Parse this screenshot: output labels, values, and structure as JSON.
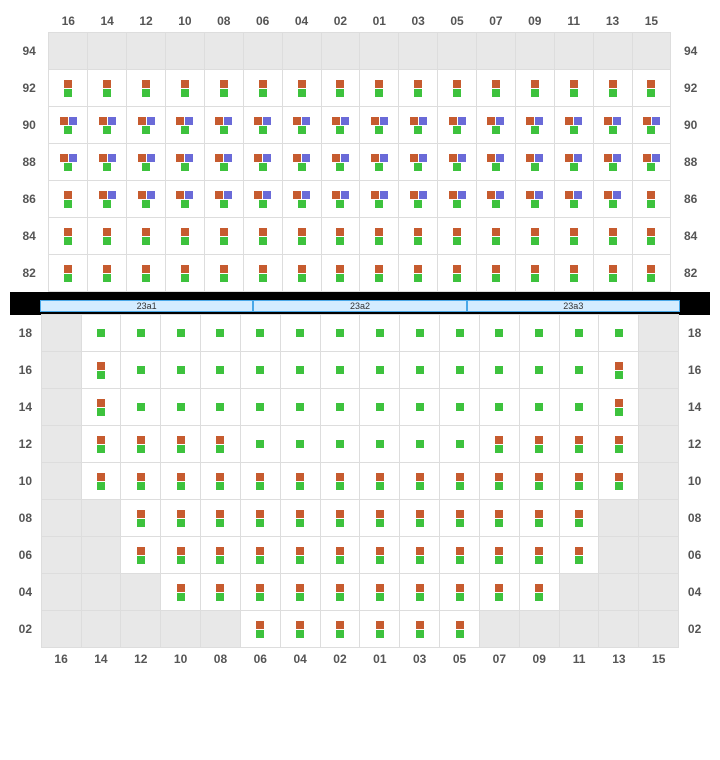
{
  "colors": {
    "orange": "#c65b2f",
    "green": "#3dc23d",
    "purple": "#6a6ad8",
    "cell_bg": "#ffffff",
    "empty_bg": "#e8e8e8",
    "border": "#dddddd",
    "frame": "#000000",
    "label": "#555555",
    "div_bg": "#d4ecff",
    "div_border": "#4aa8e8"
  },
  "columns": [
    "16",
    "14",
    "12",
    "10",
    "08",
    "06",
    "04",
    "02",
    "01",
    "03",
    "05",
    "07",
    "09",
    "11",
    "13",
    "15"
  ],
  "top": {
    "rows": [
      "94",
      "92",
      "90",
      "88",
      "86",
      "84",
      "82"
    ],
    "data": {
      "94": "................",
      "92": "AAAAAAAAAAAAAAAA",
      "90": "BBBBBBBBBBBBBBBB",
      "88": "BBBBBBBBBBBBBBBB",
      "86": "ABBBBBBBBBBBBBBA",
      "84": "AAAAAAAAAAAAAAAA",
      "82": "AAAAAAAAAAAAAAAA"
    }
  },
  "dividers": [
    "23a1",
    "23a2",
    "23a3"
  ],
  "bottom": {
    "rows": [
      "18",
      "16",
      "14",
      "12",
      "10",
      "08",
      "06",
      "04",
      "02"
    ],
    "data": {
      "18": ".GGGGGGGGGGGGGG.",
      "16": ".AGGGGGGGGGGGGA.",
      "14": ".AGGGGGGGGGGGGA.",
      "12": ".AAAAGGGGGGAAAA.",
      "10": ".AAAAAAAAAAAAAA.",
      "08": "..AAAAAAAAAAAA..",
      "06": "..AAAAAAAAAAAA..",
      "04": "...AAAAAAAAAA...",
      "02": ".....AAAAAA....."
    }
  },
  "legend": {
    ".": "empty",
    "A": "og",
    "B": "opg",
    "G": "g"
  }
}
